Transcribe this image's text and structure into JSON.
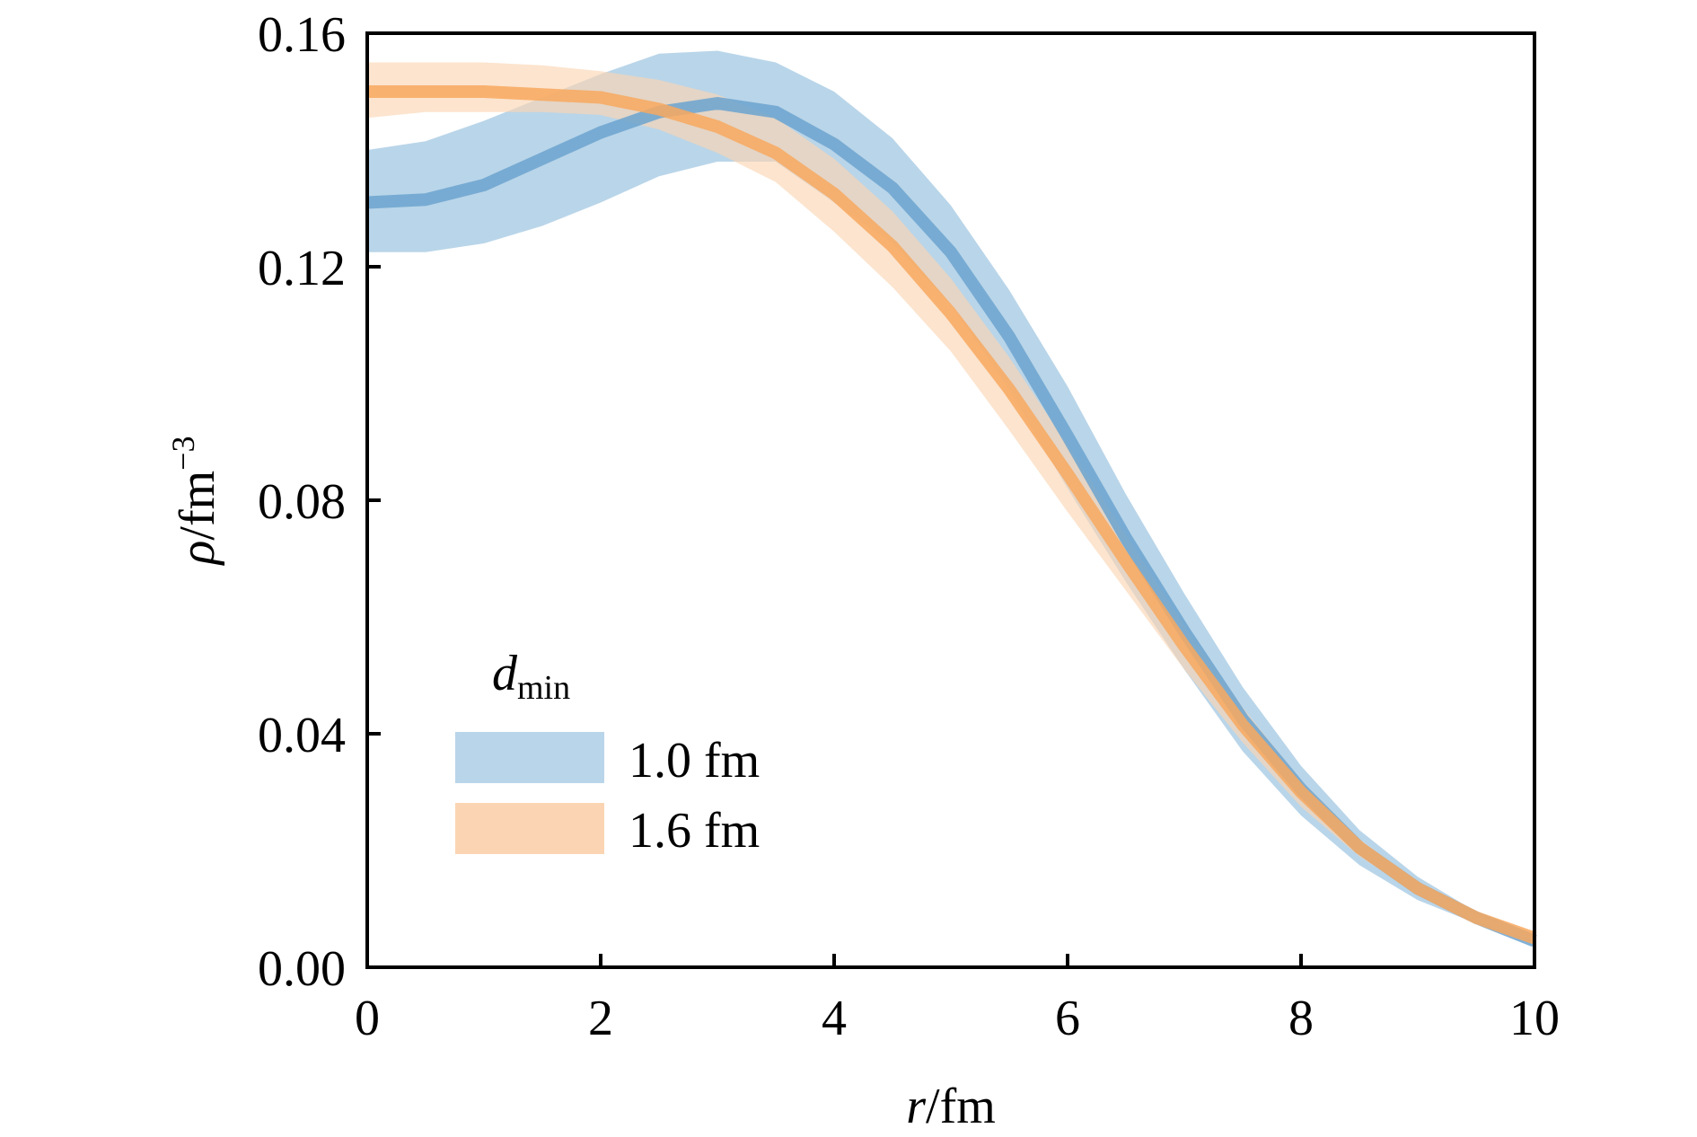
{
  "chart_data": {
    "type": "area",
    "title": "",
    "xlabel": {
      "var": "r",
      "unit": "/fm"
    },
    "ylabel": {
      "var": "ρ",
      "unit": "/fm",
      "exponent": "−3"
    },
    "xlim": [
      0,
      10
    ],
    "ylim": [
      0,
      0.16
    ],
    "xticks": [
      0,
      2,
      4,
      6,
      8,
      10
    ],
    "xtick_labels": [
      "0",
      "2",
      "4",
      "6",
      "8",
      "10"
    ],
    "yticks": [
      0,
      0.04,
      0.08,
      0.12,
      0.16
    ],
    "ytick_labels": [
      "0.00",
      "0.04",
      "0.08",
      "0.12",
      "0.16"
    ],
    "grid": false,
    "legend": {
      "title_var": "d",
      "title_sub": "min",
      "placement": "lower-left"
    },
    "x": [
      0,
      0.5,
      1,
      1.5,
      2,
      2.5,
      3,
      3.5,
      4,
      4.5,
      5,
      5.5,
      6,
      6.5,
      7,
      7.5,
      8,
      8.5,
      9,
      9.5,
      10
    ],
    "series": [
      {
        "name": "1.0 fm",
        "line_color": "#6BA3CF",
        "band_color": "#B9D5E9",
        "mean": [
          0.131,
          0.1315,
          0.134,
          0.1385,
          0.143,
          0.1465,
          0.148,
          0.1465,
          0.141,
          0.1335,
          0.1225,
          0.108,
          0.091,
          0.0735,
          0.0575,
          0.0425,
          0.0305,
          0.0205,
          0.0135,
          0.0085,
          0.0045
        ],
        "upper": [
          0.14,
          0.1415,
          0.145,
          0.149,
          0.153,
          0.1565,
          0.157,
          0.155,
          0.15,
          0.142,
          0.1305,
          0.116,
          0.0995,
          0.081,
          0.064,
          0.048,
          0.0345,
          0.0235,
          0.0155,
          0.0095,
          0.005
        ],
        "lower": [
          0.1225,
          0.1225,
          0.124,
          0.127,
          0.131,
          0.1355,
          0.138,
          0.138,
          0.131,
          0.124,
          0.1135,
          0.099,
          0.082,
          0.066,
          0.051,
          0.037,
          0.026,
          0.0175,
          0.0115,
          0.0075,
          0.004
        ]
      },
      {
        "name": "1.6 fm",
        "line_color": "#F8A85E",
        "band_color": "#FBD5B3",
        "mean": [
          0.15,
          0.15,
          0.15,
          0.1495,
          0.149,
          0.147,
          0.144,
          0.1395,
          0.1325,
          0.1235,
          0.112,
          0.099,
          0.0845,
          0.0695,
          0.055,
          0.0415,
          0.03,
          0.0205,
          0.0135,
          0.0085,
          0.005
        ],
        "upper": [
          0.155,
          0.155,
          0.155,
          0.1545,
          0.1535,
          0.152,
          0.1495,
          0.1455,
          0.1385,
          0.1295,
          0.118,
          0.1045,
          0.0895,
          0.074,
          0.0585,
          0.0445,
          0.032,
          0.022,
          0.0145,
          0.009,
          0.0055
        ],
        "lower": [
          0.1455,
          0.1465,
          0.1465,
          0.1465,
          0.146,
          0.1435,
          0.1395,
          0.1345,
          0.126,
          0.1165,
          0.1055,
          0.092,
          0.078,
          0.0645,
          0.051,
          0.0385,
          0.0275,
          0.019,
          0.0125,
          0.0078,
          0.0045
        ]
      }
    ]
  }
}
